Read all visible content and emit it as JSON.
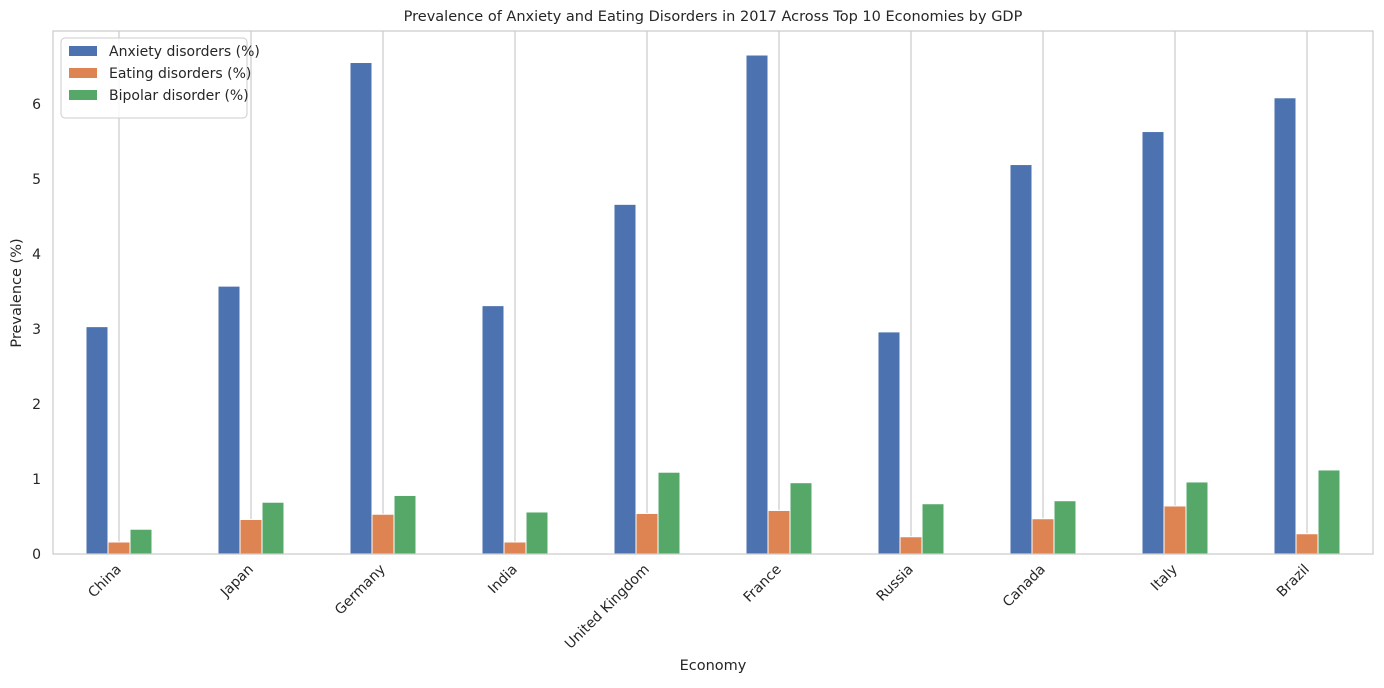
{
  "chart_data": {
    "type": "bar",
    "title": "Prevalence of Anxiety and Eating Disorders in 2017 Across Top 10 Economies by GDP",
    "xlabel": "Economy",
    "ylabel": "Prevalence (%)",
    "ylim": [
      0,
      6.97
    ],
    "yticks": [
      "0",
      "1",
      "2",
      "3",
      "4",
      "5",
      "6"
    ],
    "grid": "vertical",
    "legend_position": "top-left",
    "categories": [
      "China",
      "Japan",
      "Germany",
      "India",
      "United Kingdom",
      "France",
      "Russia",
      "Canada",
      "Italy",
      "Brazil"
    ],
    "series": [
      {
        "name": "Anxiety disorders (%)",
        "color": "#4c72b0",
        "values": [
          3.03,
          3.57,
          6.55,
          3.31,
          4.66,
          6.65,
          2.96,
          5.19,
          5.63,
          6.08
        ]
      },
      {
        "name": "Eating disorders (%)",
        "color": "#dd8452",
        "values": [
          0.16,
          0.46,
          0.53,
          0.16,
          0.54,
          0.58,
          0.23,
          0.47,
          0.64,
          0.27
        ]
      },
      {
        "name": "Bipolar disorder (%)",
        "color": "#55a868",
        "values": [
          0.33,
          0.69,
          0.78,
          0.56,
          1.09,
          0.95,
          0.67,
          0.71,
          0.96,
          1.12
        ]
      }
    ]
  }
}
